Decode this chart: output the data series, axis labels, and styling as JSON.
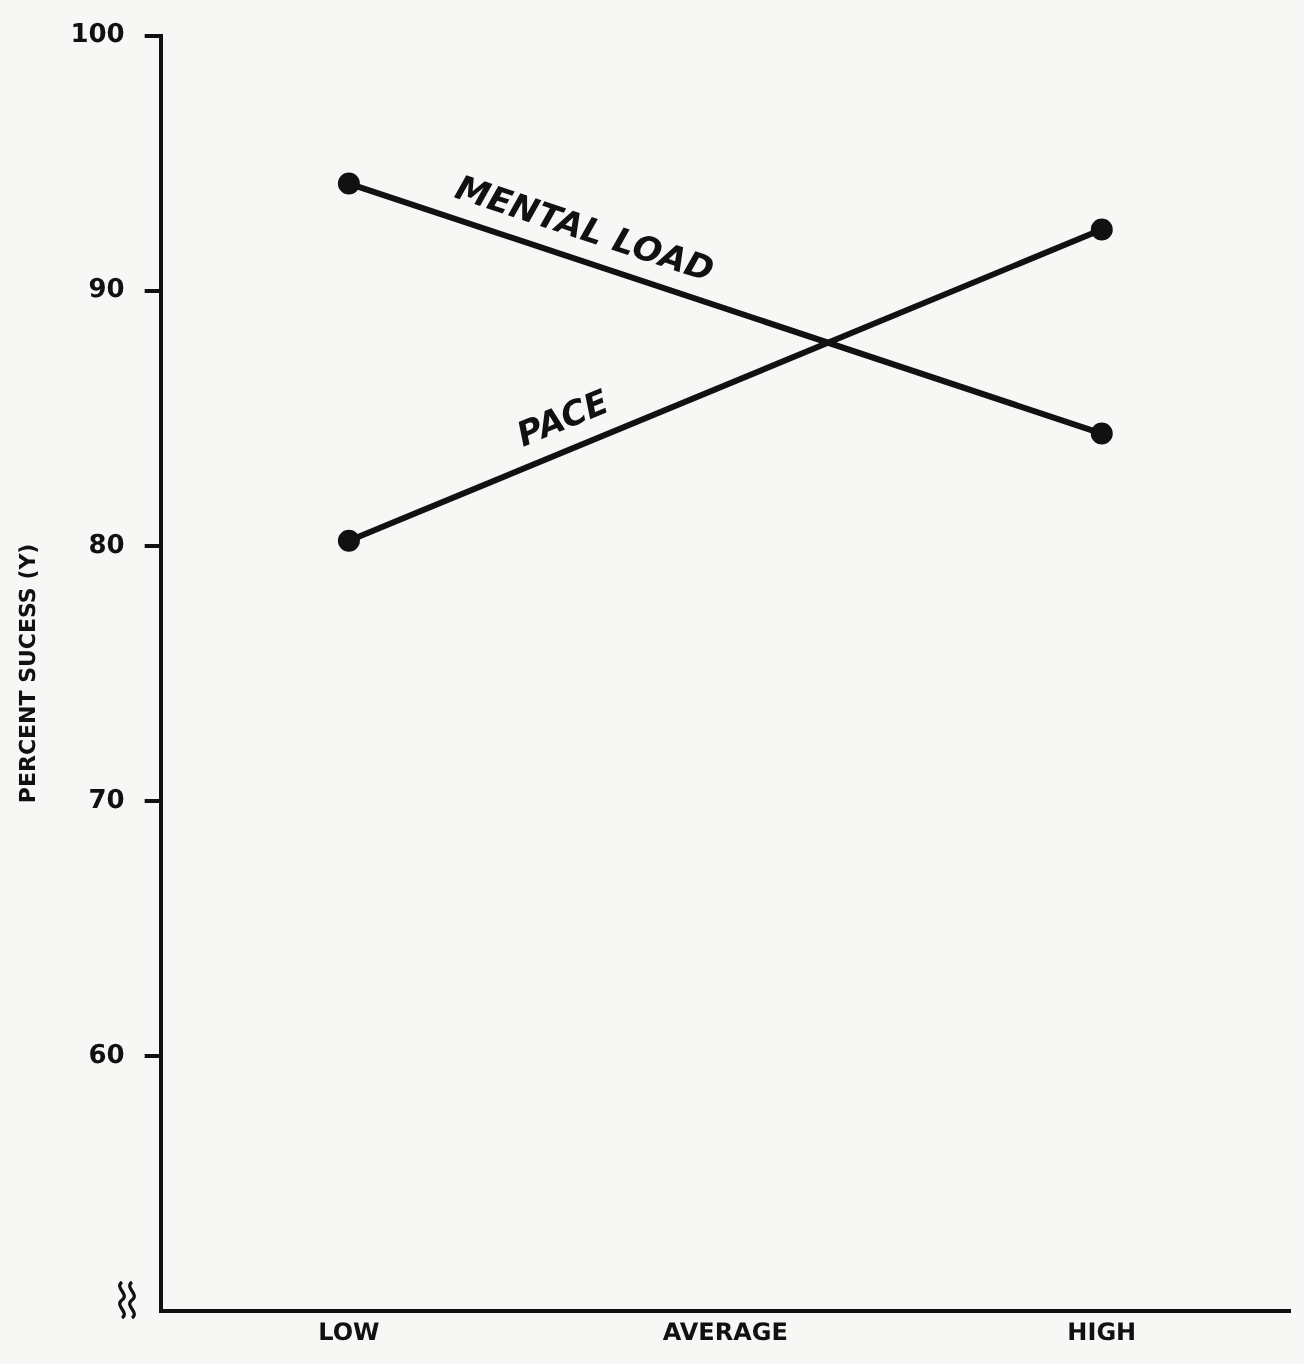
{
  "chart_data": {
    "type": "line",
    "ylabel": "PERCENT SUCESS (Y)",
    "categories": [
      "LOW",
      "AVERAGE",
      "HIGH"
    ],
    "series": [
      {
        "name": "MENTAL LOAD",
        "color": "#111111",
        "values": [
          94.2,
          null,
          84.4
        ]
      },
      {
        "name": "PACE",
        "color": "#111111",
        "values": [
          80.2,
          null,
          92.4
        ]
      }
    ],
    "ylim": [
      50,
      100
    ],
    "yticks": [
      60,
      70,
      80,
      90,
      100
    ],
    "grid": false,
    "legend": false,
    "marker": "circle",
    "line_style": "solid"
  }
}
